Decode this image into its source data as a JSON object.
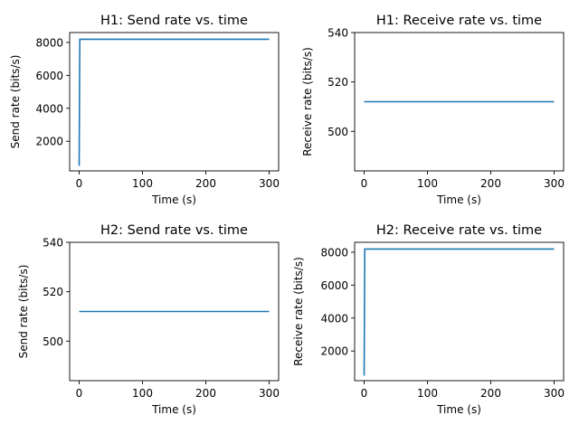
{
  "chart_data": [
    {
      "type": "line",
      "title": "H1: Send rate vs. time",
      "xlabel": "Time (s)",
      "ylabel": "Send rate (bits/s)",
      "xlim": [
        -15,
        315
      ],
      "ylim": [
        200,
        8600
      ],
      "xticks": [
        0,
        100,
        200,
        300
      ],
      "xtick_labels": [
        "0",
        "100",
        "200",
        "300"
      ],
      "yticks": [
        2000,
        4000,
        6000,
        8000
      ],
      "ytick_labels": [
        "2000",
        "4000",
        "6000",
        "8000"
      ],
      "series": [
        {
          "color": "#1f77b4",
          "x": [
            0,
            1,
            300
          ],
          "y": [
            512,
            8192,
            8192
          ]
        }
      ]
    },
    {
      "type": "line",
      "title": "H1: Receive rate vs. time",
      "xlabel": "Time (s)",
      "ylabel": "Receive rate (bits/s)",
      "xlim": [
        -15,
        315
      ],
      "ylim": [
        484,
        540
      ],
      "xticks": [
        0,
        100,
        200,
        300
      ],
      "xtick_labels": [
        "0",
        "100",
        "200",
        "300"
      ],
      "yticks": [
        500,
        520,
        540
      ],
      "ytick_labels": [
        "500",
        "520",
        "540"
      ],
      "series": [
        {
          "color": "#1f77b4",
          "x": [
            0,
            300
          ],
          "y": [
            512,
            512
          ]
        }
      ]
    },
    {
      "type": "line",
      "title": "H2: Send rate vs. time",
      "xlabel": "Time (s)",
      "ylabel": "Send rate (bits/s)",
      "xlim": [
        -15,
        315
      ],
      "ylim": [
        484,
        540
      ],
      "xticks": [
        0,
        100,
        200,
        300
      ],
      "xtick_labels": [
        "0",
        "100",
        "200",
        "300"
      ],
      "yticks": [
        500,
        520,
        540
      ],
      "ytick_labels": [
        "500",
        "520",
        "540"
      ],
      "series": [
        {
          "color": "#1f77b4",
          "x": [
            0,
            300
          ],
          "y": [
            512,
            512
          ]
        }
      ]
    },
    {
      "type": "line",
      "title": "H2: Receive rate vs. time",
      "xlabel": "Time (s)",
      "ylabel": "Receive rate (bits/s)",
      "xlim": [
        -15,
        315
      ],
      "ylim": [
        200,
        8600
      ],
      "xticks": [
        0,
        100,
        200,
        300
      ],
      "xtick_labels": [
        "0",
        "100",
        "200",
        "300"
      ],
      "yticks": [
        2000,
        4000,
        6000,
        8000
      ],
      "ytick_labels": [
        "2000",
        "4000",
        "6000",
        "8000"
      ],
      "series": [
        {
          "color": "#1f77b4",
          "x": [
            0,
            1,
            300
          ],
          "y": [
            512,
            8192,
            8192
          ]
        }
      ]
    }
  ]
}
